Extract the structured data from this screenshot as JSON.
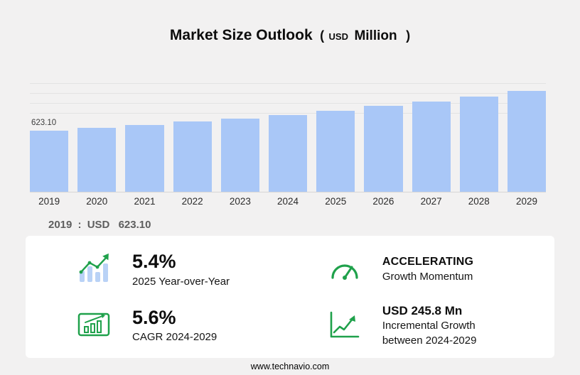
{
  "title": {
    "main": "Market Size Outlook",
    "open_paren": "(",
    "currency": "USD",
    "unit": "Million",
    "close_paren": ")"
  },
  "chart_data": {
    "type": "bar",
    "title": "Market Size Outlook (USD Million)",
    "categories": [
      "2019",
      "2020",
      "2021",
      "2022",
      "2023",
      "2024",
      "2025",
      "2026",
      "2027",
      "2028",
      "2029"
    ],
    "values": [
      623.1,
      651.5,
      682.0,
      714.0,
      748.0,
      784.5,
      827.5,
      872.5,
      919.5,
      969.0,
      1030.3
    ],
    "value_labels": [
      "623.10"
    ],
    "bar_color": "#a9c7f7",
    "ylim": [
      0,
      1100
    ],
    "gridline_values": [
      800,
      900,
      1000,
      1100
    ],
    "xlabel": "",
    "ylabel": "",
    "legend": "none",
    "grid": "partial-top"
  },
  "baseline_note": {
    "year": "2019",
    "separator": ":",
    "currency": "USD",
    "value": "623.10"
  },
  "stats": {
    "yoy": {
      "value": "5.4%",
      "label": "2025 Year-over-Year"
    },
    "momentum": {
      "value": "ACCELERATING",
      "label": "Growth Momentum"
    },
    "cagr": {
      "value": "5.6%",
      "label": "CAGR 2024-2029"
    },
    "incremental": {
      "value": "USD 245.8 Mn",
      "label_line1": "Incremental Growth",
      "label_line2": "between 2024-2029"
    }
  },
  "colors": {
    "bar": "#a9c7f7",
    "accent_green": "#1fa14b",
    "icon_blue": "#b9d2f6",
    "background": "#f2f1f1",
    "panel": "#ffffff"
  },
  "footer": {
    "url": "www.technavio.com"
  }
}
